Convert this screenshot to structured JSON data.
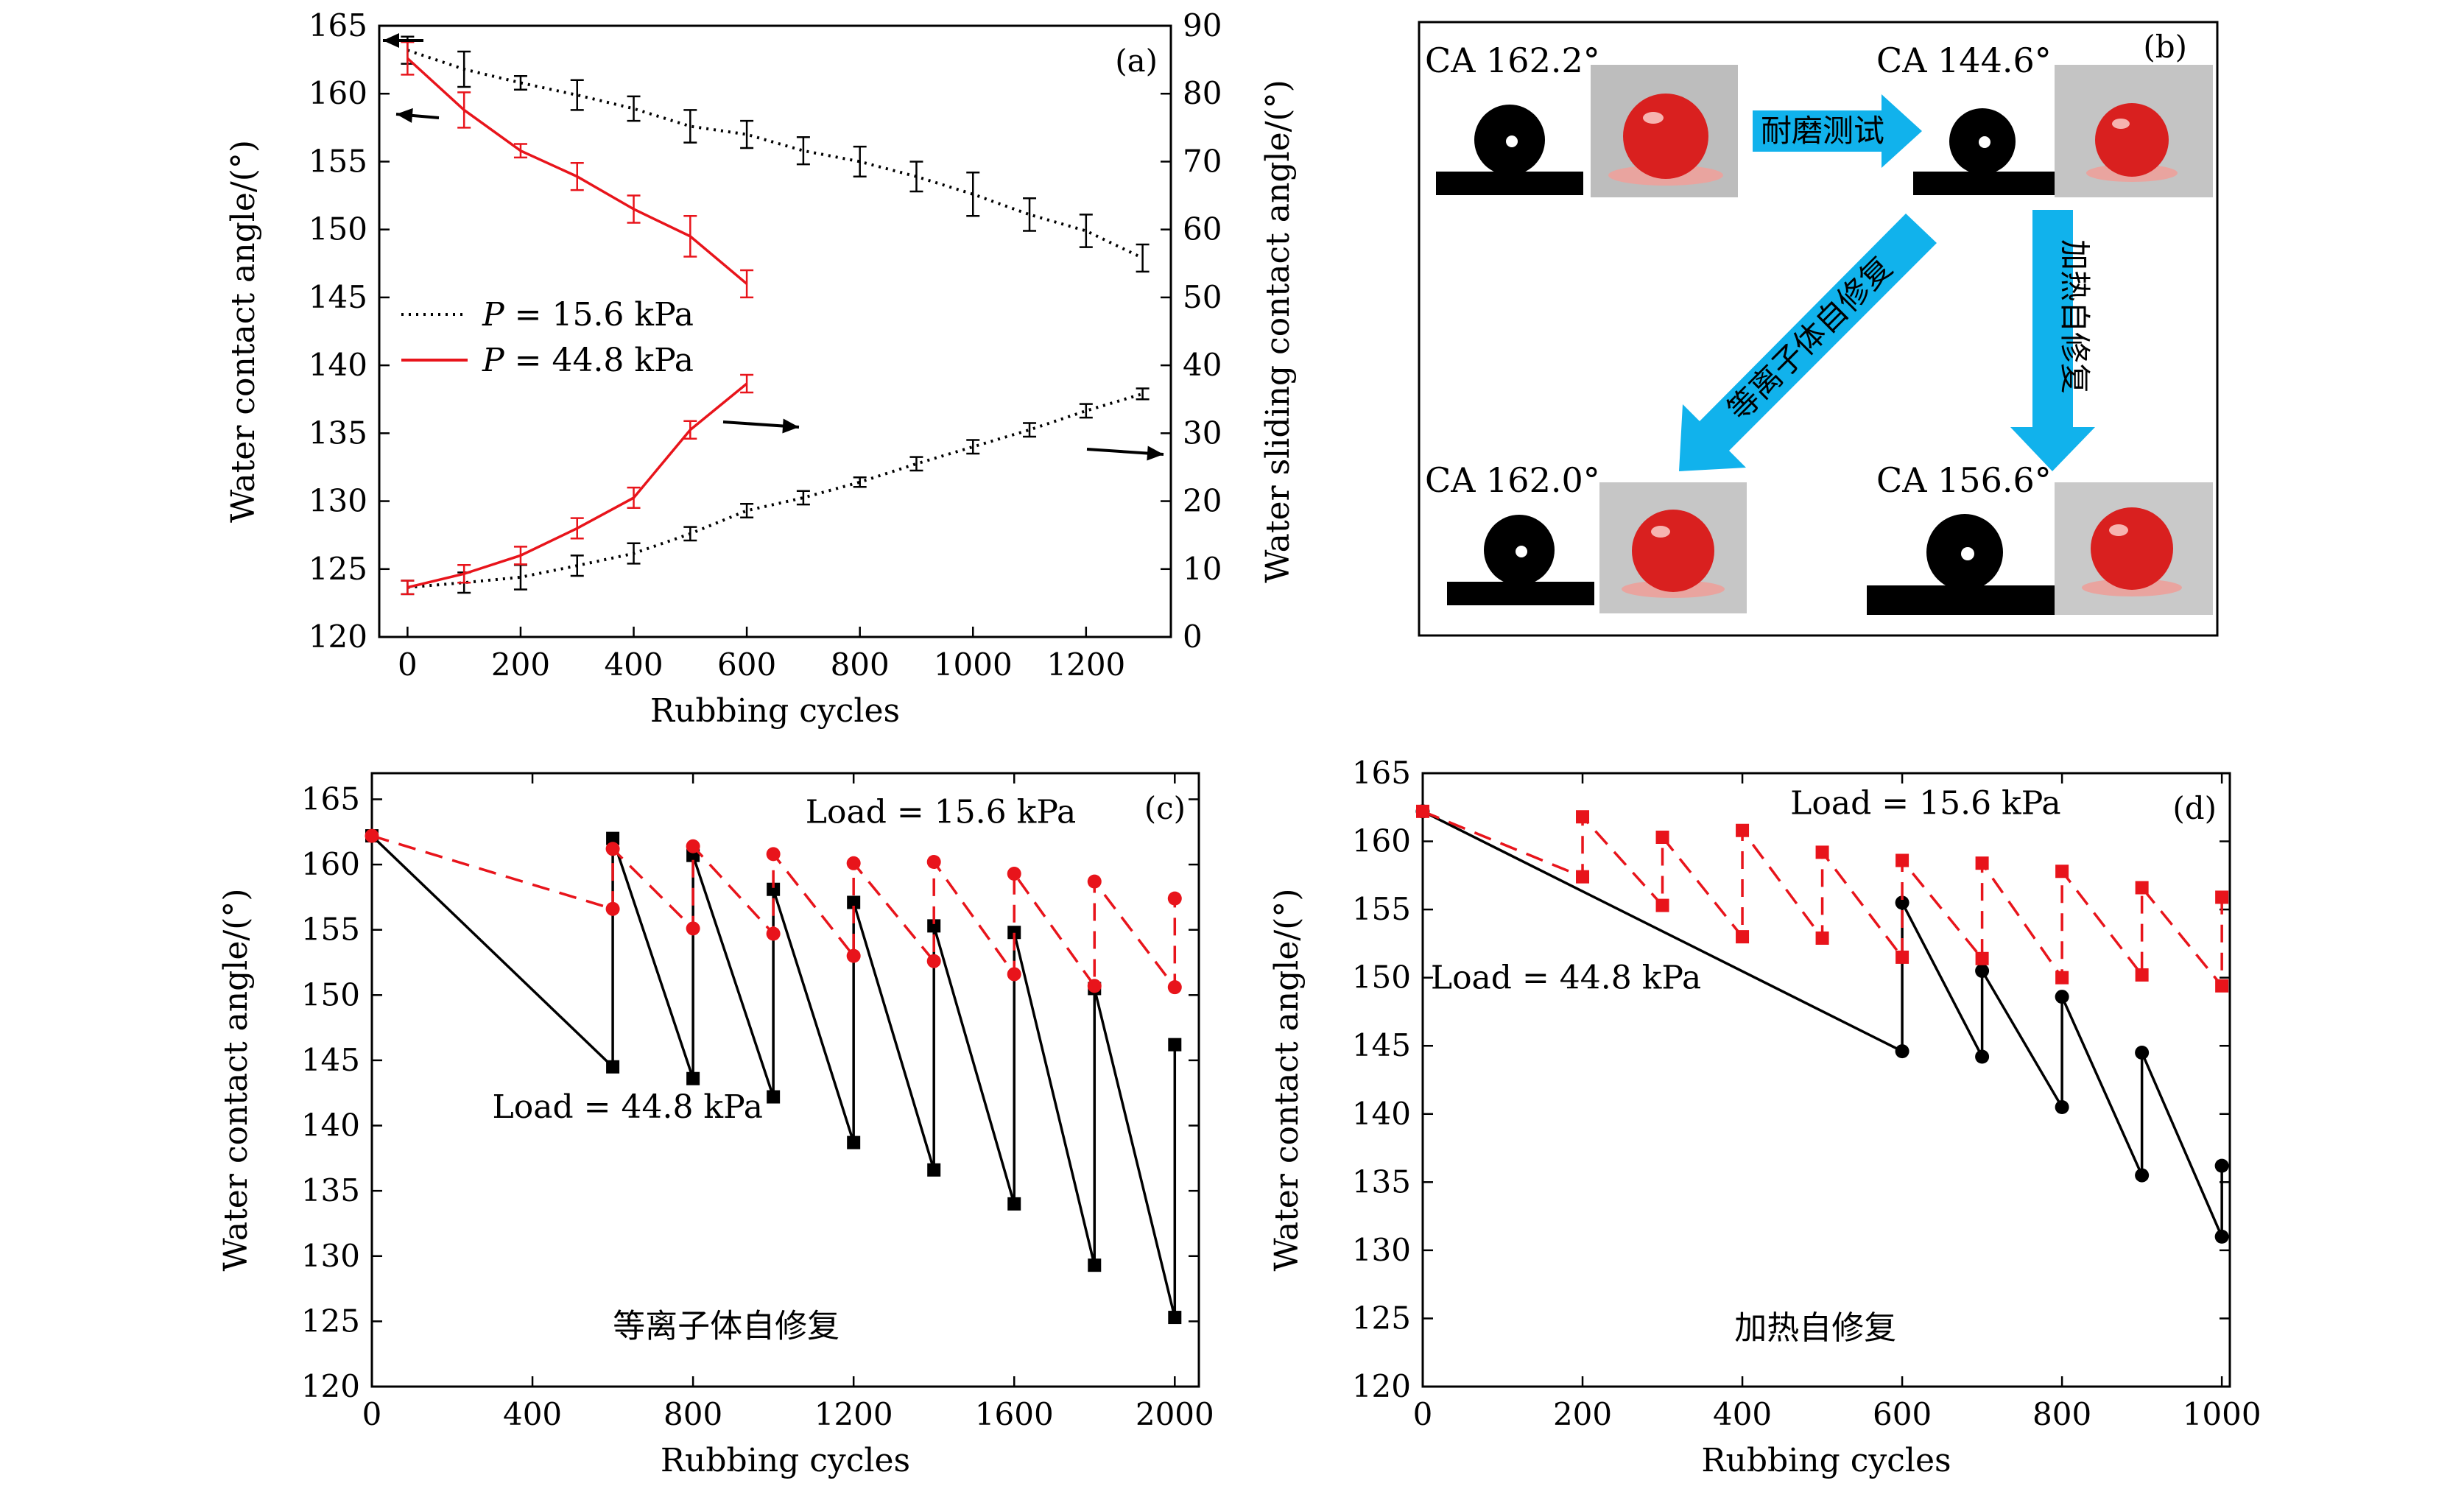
{
  "colors": {
    "black": "#000000",
    "red": "#e8141b",
    "cyan": "#11b2ec",
    "drop": "#d9201f",
    "photo_bg": "#bdbdbd"
  },
  "chart_data": [
    {
      "id": "a",
      "type": "line",
      "tag": "(a)",
      "xlabel": "Rubbing cycles",
      "ylabel": "Water contact angle/(°)",
      "y2label": "Water sliding contact angle/(°)",
      "xlim": [
        -50,
        1350
      ],
      "ylim": [
        120,
        165
      ],
      "y2lim": [
        0,
        90
      ],
      "xticks": [
        0,
        200,
        400,
        600,
        800,
        1000,
        1200
      ],
      "yticks": [
        120,
        125,
        130,
        135,
        140,
        145,
        150,
        155,
        160,
        165
      ],
      "y2ticks": [
        0,
        10,
        20,
        30,
        40,
        50,
        60,
        70,
        80,
        90
      ],
      "legend": [
        {
          "label": "P = 15.6 kPa",
          "symbol": "P",
          "rest": " = 15.6 kPa",
          "style": "dotted",
          "color": "#000000"
        },
        {
          "label": "P = 44.8 kPa",
          "symbol": "P",
          "rest": " = 44.8 kPa",
          "style": "solid",
          "color": "#e8141b"
        }
      ],
      "series": [
        {
          "name": "P = 15.6 kPa CA",
          "axis": "left",
          "color": "#000000",
          "style": "dotted",
          "x": [
            0,
            100,
            200,
            300,
            400,
            500,
            600,
            700,
            800,
            900,
            1000,
            1100,
            1200,
            1300
          ],
          "y": [
            163.2,
            161.8,
            160.8,
            159.9,
            158.9,
            157.6,
            157.0,
            155.8,
            155.0,
            153.9,
            152.6,
            151.1,
            149.9,
            147.9
          ],
          "err": [
            1.0,
            1.3,
            0.5,
            1.1,
            0.9,
            1.2,
            1.0,
            1.0,
            1.1,
            1.1,
            1.6,
            1.2,
            1.2,
            1.0
          ]
        },
        {
          "name": "P = 44.8 kPa CA",
          "axis": "left",
          "color": "#e8141b",
          "style": "solid",
          "x": [
            0,
            100,
            200,
            300,
            400,
            500,
            600
          ],
          "y": [
            162.6,
            158.8,
            155.8,
            153.9,
            151.5,
            149.5,
            146.0
          ],
          "err": [
            1.2,
            1.3,
            0.5,
            1.0,
            1.0,
            1.5,
            1.0
          ]
        },
        {
          "name": "P = 15.6 kPa SA",
          "axis": "right",
          "color": "#000000",
          "style": "dotted",
          "x": [
            0,
            100,
            200,
            300,
            400,
            500,
            600,
            700,
            800,
            900,
            1000,
            1100,
            1200,
            1300
          ],
          "y": [
            7.3,
            8.0,
            8.8,
            10.5,
            12.3,
            15.2,
            18.6,
            20.5,
            22.8,
            25.5,
            28.0,
            30.5,
            33.3,
            35.8
          ],
          "err": [
            1.0,
            1.5,
            1.8,
            1.5,
            1.5,
            1.0,
            1.0,
            1.0,
            0.7,
            1.0,
            1.0,
            1.0,
            1.0,
            0.8
          ]
        },
        {
          "name": "P = 44.8 kPa SA",
          "axis": "right",
          "color": "#e8141b",
          "style": "solid",
          "x": [
            0,
            100,
            200,
            300,
            400,
            500,
            600
          ],
          "y": [
            7.3,
            9.3,
            12.0,
            16.0,
            20.5,
            30.5,
            37.3
          ],
          "err": [
            1.0,
            1.3,
            1.3,
            1.5,
            1.5,
            1.3,
            1.3
          ]
        }
      ]
    },
    {
      "id": "c",
      "type": "line",
      "tag": "(c)",
      "xlabel": "Rubbing cycles",
      "ylabel": "Water contact angle/(°)",
      "xlim": [
        0,
        2060
      ],
      "ylim": [
        120,
        167
      ],
      "xticks": [
        0,
        400,
        800,
        1200,
        1600,
        2000
      ],
      "yticks": [
        120,
        125,
        130,
        135,
        140,
        145,
        150,
        155,
        160,
        165
      ],
      "annotations": [
        {
          "text": "Load = 15.6 kPa",
          "color": "#e8141b",
          "x": 1080,
          "y": 163.2
        },
        {
          "text": "Load = 44.8 kPa",
          "color": "#000000",
          "x": 300,
          "y": 140.6
        },
        {
          "text": "等离子体自修复",
          "color": "#000000",
          "x": 600,
          "y": 123.8
        }
      ],
      "series": [
        {
          "name": "Load = 44.8 kPa",
          "color": "#000000",
          "style": "solid",
          "marker": "square",
          "x": [
            0,
            600,
            600,
            800,
            800,
            1000,
            1000,
            1200,
            1200,
            1400,
            1400,
            1600,
            1600,
            1800,
            1800,
            2000,
            2000
          ],
          "y": [
            162.2,
            144.5,
            162.0,
            143.6,
            160.7,
            142.2,
            158.1,
            138.7,
            157.1,
            136.6,
            155.3,
            134.0,
            154.8,
            129.3,
            150.5,
            125.3,
            146.2
          ]
        },
        {
          "name": "Load = 15.6 kPa",
          "color": "#e8141b",
          "style": "dashed",
          "marker": "circle",
          "x": [
            0,
            600,
            600,
            800,
            800,
            1000,
            1000,
            1200,
            1200,
            1400,
            1400,
            1600,
            1600,
            1800,
            1800,
            2000,
            2000
          ],
          "y": [
            162.2,
            156.6,
            161.2,
            155.1,
            161.4,
            154.7,
            160.8,
            153.0,
            160.1,
            152.6,
            160.2,
            151.6,
            159.3,
            150.7,
            158.7,
            150.6,
            157.4
          ]
        }
      ]
    },
    {
      "id": "d",
      "type": "line",
      "tag": "(d)",
      "xlabel": "Rubbing cycles",
      "ylabel": "Water contact angle/(°)",
      "xlim": [
        0,
        1010
      ],
      "ylim": [
        120,
        165
      ],
      "xticks": [
        0,
        200,
        400,
        600,
        800,
        1000
      ],
      "yticks": [
        120,
        125,
        130,
        135,
        140,
        145,
        150,
        155,
        160,
        165
      ],
      "annotations": [
        {
          "text": "Load = 15.6 kPa",
          "color": "#e8141b",
          "x": 460,
          "y": 162.0
        },
        {
          "text": "Load = 44.8 kPa",
          "color": "#000000",
          "x": 10,
          "y": 149.2
        },
        {
          "text": "加热自修复",
          "color": "#000000",
          "x": 390,
          "y": 123.5
        }
      ],
      "series": [
        {
          "name": "Load = 44.8 kPa",
          "color": "#000000",
          "style": "solid",
          "marker": "circle",
          "x": [
            0,
            600,
            600,
            700,
            700,
            800,
            800,
            900,
            900,
            1000,
            1000
          ],
          "y": [
            162.2,
            144.6,
            155.5,
            144.2,
            150.5,
            140.5,
            148.6,
            135.5,
            144.5,
            131.0,
            136.2
          ]
        },
        {
          "name": "Load = 15.6 kPa",
          "color": "#e8141b",
          "style": "dashed",
          "marker": "square",
          "x": [
            0,
            200,
            200,
            300,
            300,
            400,
            400,
            500,
            500,
            600,
            600,
            700,
            700,
            800,
            800,
            900,
            900,
            1000,
            1000
          ],
          "y": [
            162.2,
            157.4,
            161.8,
            155.3,
            160.3,
            153.0,
            160.8,
            152.9,
            159.2,
            151.5,
            158.6,
            151.4,
            158.4,
            150.0,
            157.8,
            150.2,
            156.6,
            149.4,
            155.9
          ]
        }
      ]
    }
  ],
  "panel_b": {
    "tag": "(b)",
    "ca_top_left": "CA 162.2°",
    "ca_top_right": "CA 144.6°",
    "ca_bottom_left": "CA 162.0°",
    "ca_bottom_right": "CA 156.6°",
    "arrow_wear_test": "耐磨测试",
    "arrow_plasma": "等离子体自修复",
    "arrow_heating": "加热自修复"
  }
}
